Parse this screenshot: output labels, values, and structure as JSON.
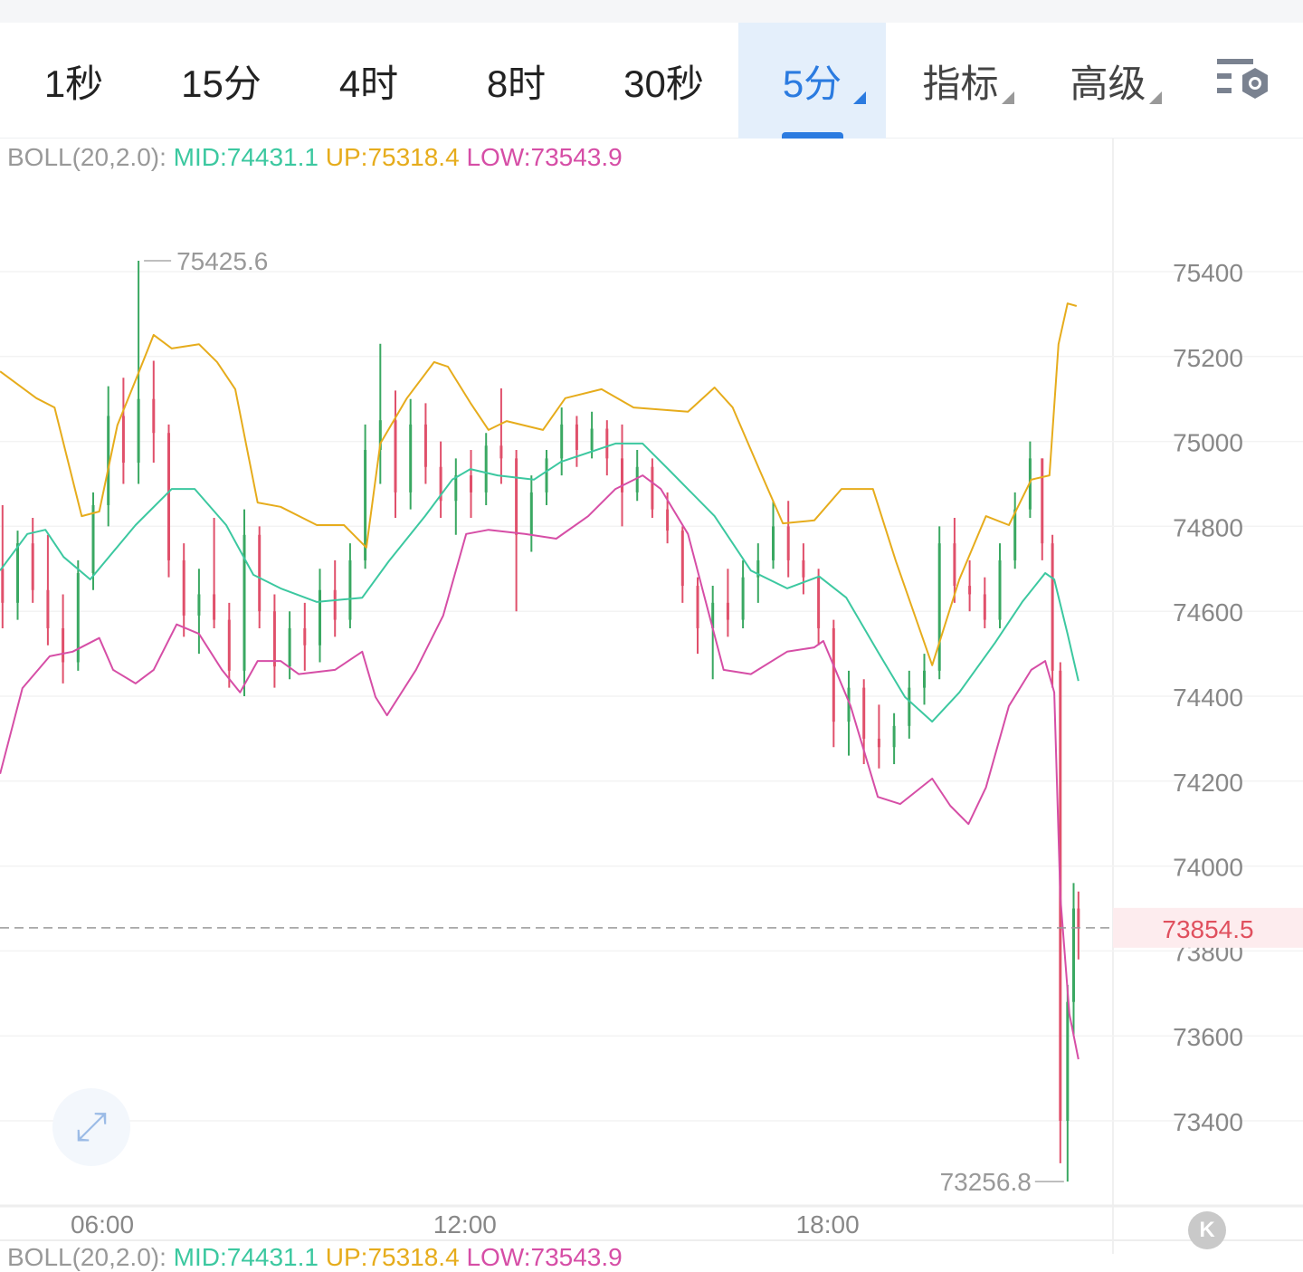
{
  "tabs": [
    {
      "label": "1秒"
    },
    {
      "label": "15分"
    },
    {
      "label": "4时"
    },
    {
      "label": "8时"
    },
    {
      "label": "30秒"
    },
    {
      "label": "5分",
      "active": true
    },
    {
      "label": "指标"
    },
    {
      "label": "高级"
    }
  ],
  "settings_icon": "chart-settings-icon",
  "legend": {
    "name": "BOLL(20,2.0):",
    "mid": "MID:74431.1",
    "up": "UP:75318.4",
    "low": "LOW:73543.9"
  },
  "colors": {
    "mid": "#3cc8a0",
    "up": "#e6ac1c",
    "low": "#d64ea6",
    "rise": "#3aa862",
    "fall": "#e0506b",
    "accent": "#2b7be0"
  },
  "chart_data": {
    "type": "candlestick",
    "interval": "5分",
    "ylim": [
      73150,
      75560
    ],
    "xlim_hours": [
      4.308,
      22.7
    ],
    "y_ticks": [
      "75400",
      "75200",
      "75000",
      "74800",
      "74600",
      "74400",
      "74200",
      "74000",
      "73800",
      "73600",
      "73400"
    ],
    "x_ticks": [
      {
        "t": 6,
        "label": "06:00"
      },
      {
        "t": 12,
        "label": "12:00"
      },
      {
        "t": 18,
        "label": "18:00"
      }
    ],
    "max_label": {
      "t": 6.6,
      "value": 75425.6,
      "label": "75425.6"
    },
    "min_label": {
      "t": 21.97,
      "value": 73256.8,
      "label": "73256.8"
    },
    "last_price": {
      "value": 73854.5,
      "label": "73854.5"
    },
    "candles": [
      [
        4.35,
        74700,
        74850,
        74560,
        74620
      ],
      [
        4.6,
        74620,
        74790,
        74580,
        74760
      ],
      [
        4.85,
        74760,
        74820,
        74620,
        74650
      ],
      [
        5.1,
        74650,
        74780,
        74520,
        74560
      ],
      [
        5.35,
        74560,
        74640,
        74430,
        74480
      ],
      [
        5.6,
        74480,
        74720,
        74460,
        74690
      ],
      [
        5.85,
        74690,
        74880,
        74650,
        74850
      ],
      [
        6.1,
        74850,
        75130,
        74800,
        75060
      ],
      [
        6.35,
        75060,
        75150,
        74900,
        74950
      ],
      [
        6.6,
        74950,
        75425.6,
        74900,
        75100
      ],
      [
        6.85,
        75100,
        75190,
        74950,
        75020
      ],
      [
        7.1,
        75020,
        75040,
        74680,
        74720
      ],
      [
        7.35,
        74720,
        74760,
        74540,
        74590
      ],
      [
        7.6,
        74590,
        74700,
        74500,
        74640
      ],
      [
        7.85,
        74640,
        74820,
        74560,
        74580
      ],
      [
        8.1,
        74580,
        74620,
        74420,
        74460
      ],
      [
        8.35,
        74460,
        74840,
        74400,
        74780
      ],
      [
        8.6,
        74780,
        74800,
        74560,
        74600
      ],
      [
        8.85,
        74600,
        74640,
        74420,
        74470
      ],
      [
        9.1,
        74470,
        74600,
        74440,
        74560
      ],
      [
        9.35,
        74560,
        74620,
        74460,
        74520
      ],
      [
        9.6,
        74520,
        74700,
        74480,
        74650
      ],
      [
        9.85,
        74650,
        74720,
        74540,
        74580
      ],
      [
        10.1,
        74580,
        74760,
        74560,
        74720
      ],
      [
        10.35,
        74720,
        75040,
        74700,
        74980
      ],
      [
        10.6,
        74980,
        75230,
        74900,
        75050
      ],
      [
        10.85,
        75050,
        75120,
        74820,
        74880
      ],
      [
        11.1,
        74880,
        75100,
        74840,
        75040
      ],
      [
        11.35,
        75040,
        75090,
        74900,
        74940
      ],
      [
        11.6,
        74940,
        75000,
        74820,
        74860
      ],
      [
        11.85,
        74860,
        74960,
        74780,
        74920
      ],
      [
        12.1,
        74920,
        74980,
        74820,
        74880
      ],
      [
        12.35,
        74880,
        75020,
        74850,
        74990
      ],
      [
        12.6,
        74990,
        75125,
        74900,
        74960
      ],
      [
        12.85,
        74960,
        74980,
        74600,
        74780
      ],
      [
        13.1,
        74780,
        74920,
        74740,
        74880
      ],
      [
        13.35,
        74880,
        74980,
        74850,
        74960
      ],
      [
        13.6,
        74960,
        75080,
        74920,
        75040
      ],
      [
        13.85,
        75040,
        75060,
        74940,
        74980
      ],
      [
        14.1,
        74980,
        75070,
        74960,
        75030
      ],
      [
        14.35,
        75030,
        75050,
        74920,
        74960
      ],
      [
        14.6,
        74960,
        75040,
        74800,
        74880
      ],
      [
        14.85,
        74880,
        74980,
        74860,
        74940
      ],
      [
        15.1,
        74940,
        74960,
        74820,
        74840
      ],
      [
        15.35,
        74840,
        74880,
        74760,
        74790
      ],
      [
        15.6,
        74790,
        74800,
        74620,
        74660
      ],
      [
        15.85,
        74660,
        74680,
        74500,
        74560
      ],
      [
        16.1,
        74560,
        74660,
        74440,
        74620
      ],
      [
        16.35,
        74620,
        74700,
        74540,
        74580
      ],
      [
        16.6,
        74580,
        74720,
        74560,
        74680
      ],
      [
        16.85,
        74680,
        74760,
        74620,
        74720
      ],
      [
        17.1,
        74720,
        74860,
        74700,
        74800
      ],
      [
        17.35,
        74800,
        74860,
        74680,
        74720
      ],
      [
        17.6,
        74720,
        74760,
        74640,
        74680
      ],
      [
        17.85,
        74680,
        74700,
        74520,
        74560
      ],
      [
        18.1,
        74560,
        74580,
        74280,
        74340
      ],
      [
        18.35,
        74340,
        74460,
        74260,
        74420
      ],
      [
        18.6,
        74420,
        74440,
        74240,
        74300
      ],
      [
        18.85,
        74300,
        74380,
        74230,
        74280
      ],
      [
        19.1,
        74280,
        74360,
        74240,
        74330
      ],
      [
        19.35,
        74330,
        74460,
        74300,
        74420
      ],
      [
        19.6,
        74420,
        74500,
        74380,
        74460
      ],
      [
        19.85,
        74460,
        74800,
        74440,
        74760
      ],
      [
        20.1,
        74760,
        74820,
        74620,
        74660
      ],
      [
        20.35,
        74660,
        74720,
        74600,
        74640
      ],
      [
        20.6,
        74640,
        74680,
        74560,
        74580
      ],
      [
        20.85,
        74580,
        74760,
        74560,
        74720
      ],
      [
        21.1,
        74720,
        74880,
        74700,
        74840
      ],
      [
        21.35,
        74840,
        75000,
        74820,
        74960
      ],
      [
        21.55,
        74960,
        74960,
        74720,
        74760
      ],
      [
        21.72,
        74760,
        74780,
        74420,
        74460
      ],
      [
        21.85,
        74460,
        74480,
        73300,
        73400
      ],
      [
        21.97,
        73400,
        73720,
        73256.8,
        73680
      ],
      [
        22.07,
        73680,
        73960,
        73600,
        73900
      ],
      [
        22.15,
        73900,
        73940,
        73780,
        73854.5
      ]
    ],
    "series": [
      {
        "name": "UP",
        "points": [
          [
            4.31,
            75165
          ],
          [
            4.91,
            75102
          ],
          [
            5.21,
            75080
          ],
          [
            5.66,
            74824
          ],
          [
            5.95,
            74835
          ],
          [
            6.25,
            75038
          ],
          [
            6.55,
            75144
          ],
          [
            6.85,
            75251
          ],
          [
            7.15,
            75219
          ],
          [
            7.6,
            75229
          ],
          [
            7.9,
            75187
          ],
          [
            8.2,
            75123
          ],
          [
            8.57,
            74856
          ],
          [
            8.95,
            74846
          ],
          [
            9.55,
            74803
          ],
          [
            10.0,
            74803
          ],
          [
            10.37,
            74750
          ],
          [
            10.6,
            74995
          ],
          [
            11.04,
            75102
          ],
          [
            11.49,
            75187
          ],
          [
            11.72,
            75176
          ],
          [
            12.09,
            75091
          ],
          [
            12.39,
            75027
          ],
          [
            12.69,
            75048
          ],
          [
            13.29,
            75027
          ],
          [
            13.66,
            75102
          ],
          [
            14.26,
            75123
          ],
          [
            14.79,
            75080
          ],
          [
            15.69,
            75070
          ],
          [
            16.13,
            75127
          ],
          [
            16.43,
            75080
          ],
          [
            16.88,
            74931
          ],
          [
            17.26,
            74807
          ],
          [
            17.78,
            74814
          ],
          [
            18.23,
            74888
          ],
          [
            18.75,
            74888
          ],
          [
            19.13,
            74718
          ],
          [
            19.73,
            74473
          ],
          [
            20.18,
            74675
          ],
          [
            20.62,
            74824
          ],
          [
            21.0,
            74803
          ],
          [
            21.37,
            74910
          ],
          [
            21.67,
            74920
          ],
          [
            21.82,
            75229
          ],
          [
            21.97,
            75325
          ],
          [
            22.12,
            75319
          ]
        ]
      },
      {
        "name": "MID",
        "points": [
          [
            4.31,
            74696
          ],
          [
            4.76,
            74782
          ],
          [
            5.06,
            74792
          ],
          [
            5.36,
            74728
          ],
          [
            5.8,
            74675
          ],
          [
            6.55,
            74803
          ],
          [
            7.15,
            74888
          ],
          [
            7.53,
            74888
          ],
          [
            8.05,
            74803
          ],
          [
            8.5,
            74686
          ],
          [
            8.95,
            74654
          ],
          [
            9.55,
            74622
          ],
          [
            10.3,
            74632
          ],
          [
            10.74,
            74718
          ],
          [
            11.34,
            74824
          ],
          [
            11.79,
            74910
          ],
          [
            12.09,
            74935
          ],
          [
            12.54,
            74920
          ],
          [
            13.14,
            74910
          ],
          [
            13.59,
            74952
          ],
          [
            14.49,
            74995
          ],
          [
            14.94,
            74995
          ],
          [
            15.39,
            74931
          ],
          [
            16.13,
            74824
          ],
          [
            16.73,
            74696
          ],
          [
            17.33,
            74654
          ],
          [
            17.86,
            74682
          ],
          [
            18.31,
            74632
          ],
          [
            18.83,
            74505
          ],
          [
            19.28,
            74398
          ],
          [
            19.73,
            74340
          ],
          [
            20.18,
            74409
          ],
          [
            20.77,
            74526
          ],
          [
            21.22,
            74622
          ],
          [
            21.6,
            74690
          ],
          [
            21.75,
            74675
          ],
          [
            21.97,
            74547
          ],
          [
            22.15,
            74436
          ]
        ]
      },
      {
        "name": "LOW",
        "points": [
          [
            4.31,
            74217
          ],
          [
            4.68,
            74419
          ],
          [
            5.13,
            74494
          ],
          [
            5.51,
            74505
          ],
          [
            5.95,
            74537
          ],
          [
            6.18,
            74462
          ],
          [
            6.55,
            74430
          ],
          [
            6.85,
            74462
          ],
          [
            7.23,
            74569
          ],
          [
            7.6,
            74547
          ],
          [
            7.98,
            74462
          ],
          [
            8.28,
            74409
          ],
          [
            8.57,
            74483
          ],
          [
            8.95,
            74483
          ],
          [
            9.25,
            74452
          ],
          [
            9.85,
            74462
          ],
          [
            10.3,
            74505
          ],
          [
            10.52,
            74398
          ],
          [
            10.71,
            74355
          ],
          [
            11.19,
            74462
          ],
          [
            11.64,
            74590
          ],
          [
            12.02,
            74782
          ],
          [
            12.39,
            74792
          ],
          [
            12.99,
            74782
          ],
          [
            13.51,
            74771
          ],
          [
            14.04,
            74824
          ],
          [
            14.49,
            74888
          ],
          [
            14.94,
            74920
          ],
          [
            15.24,
            74888
          ],
          [
            15.69,
            74782
          ],
          [
            16.28,
            74462
          ],
          [
            16.73,
            74452
          ],
          [
            17.33,
            74505
          ],
          [
            17.78,
            74515
          ],
          [
            17.93,
            74530
          ],
          [
            18.38,
            74377
          ],
          [
            18.83,
            74163
          ],
          [
            19.2,
            74146
          ],
          [
            19.73,
            74206
          ],
          [
            20.03,
            74142
          ],
          [
            20.33,
            74099
          ],
          [
            20.62,
            74185
          ],
          [
            21.0,
            74377
          ],
          [
            21.37,
            74462
          ],
          [
            21.6,
            74483
          ],
          [
            21.75,
            74409
          ],
          [
            21.85,
            73929
          ],
          [
            22.0,
            73652
          ],
          [
            22.15,
            73545
          ]
        ]
      }
    ]
  },
  "expand_icon": "expand-icon",
  "scroll_back_icon": "scroll-to-latest-icon"
}
